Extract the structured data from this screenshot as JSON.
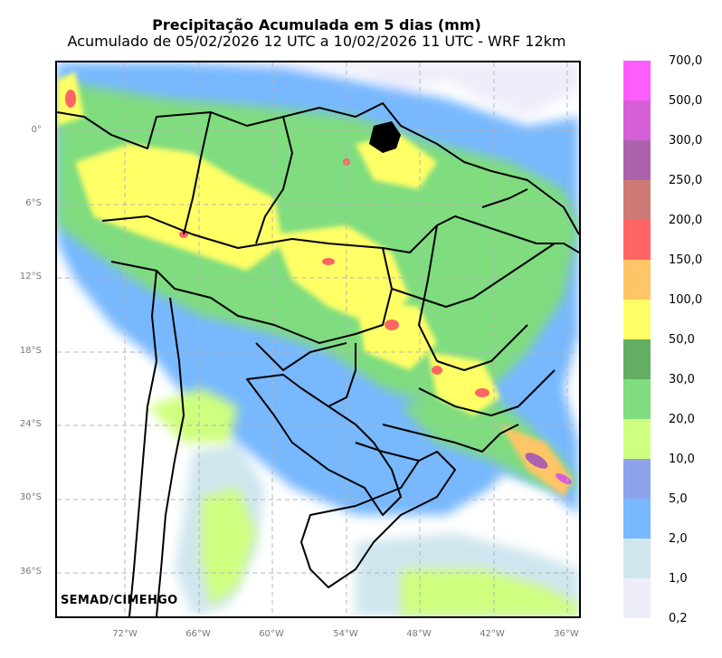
{
  "title": "Precipitação Acumulada em 5 dias (mm)",
  "subtitle": "Acumulado de 05/02/2026 12 UTC a 10/02/2026 11 UTC - WRF 12km",
  "credit": "SEMAD/CIMEHGO",
  "lat_labels": [
    "0°",
    "6°S",
    "12°S",
    "18°S",
    "24°S",
    "30°S",
    "36°S"
  ],
  "lon_labels": [
    "72°W",
    "66°W",
    "60°W",
    "54°W",
    "48°W",
    "42°W",
    "36°W"
  ],
  "colorbar": {
    "labels": [
      "700,0",
      "500,0",
      "300,0",
      "250,0",
      "200,0",
      "150,0",
      "100,0",
      "50,0",
      "30,0",
      "20,0",
      "10,0",
      "5,0",
      "2,0",
      "1,0",
      "0,2"
    ],
    "colors": [
      "#ff5cff",
      "#d65ed6",
      "#ad62ad",
      "#cf7a74",
      "#ff6565",
      "#ffc566",
      "#ffff66",
      "#62ae62",
      "#7fdc7f",
      "#cfff7f",
      "#8da4ec",
      "#77b8ff",
      "#cfe6ef",
      "#eeeefa"
    ]
  }
}
